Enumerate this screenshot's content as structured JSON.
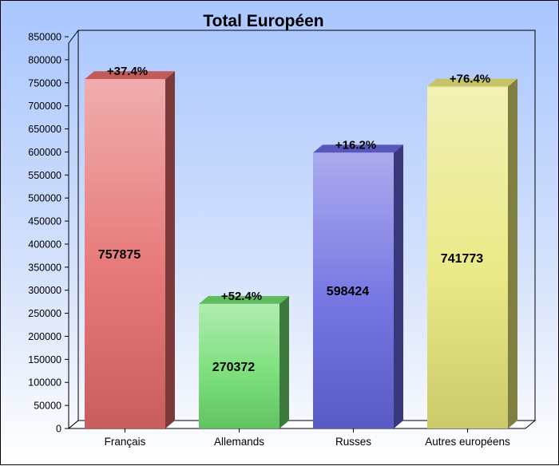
{
  "chart_data": {
    "type": "bar",
    "title": "Total Européen",
    "xlabel": "",
    "ylabel": "",
    "ylim": [
      0,
      850000
    ],
    "yticks": [
      0,
      50000,
      100000,
      150000,
      200000,
      250000,
      300000,
      350000,
      400000,
      450000,
      500000,
      550000,
      600000,
      650000,
      700000,
      750000,
      800000,
      850000
    ],
    "categories": [
      "Français",
      "Allemands",
      "Russes",
      "Autres européens"
    ],
    "values": [
      757875,
      270372,
      598424,
      741773
    ],
    "value_labels": [
      "757875",
      "270372",
      "598424",
      "741773"
    ],
    "annotations": [
      "+37.4%",
      "+52.4%",
      "+16.2%",
      "+76.4%"
    ],
    "bar_colors": [
      "#e46a6a",
      "#6fdc6f",
      "#6666e0",
      "#e8e678"
    ],
    "grid": false,
    "legend": "none"
  }
}
